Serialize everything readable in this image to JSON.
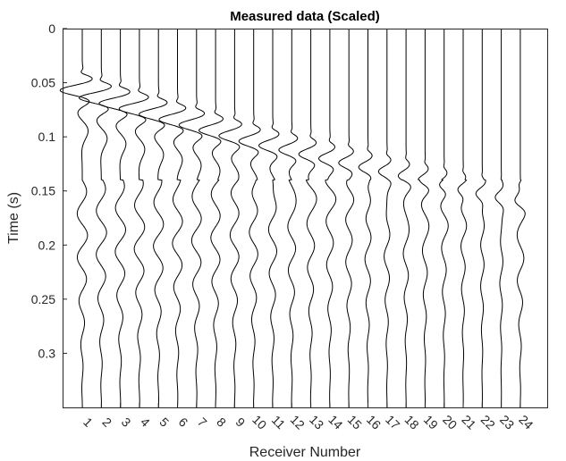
{
  "chart_data": {
    "type": "line",
    "title": "Measured data (Scaled)",
    "xlabel": "Receiver Number",
    "ylabel": "Time (s)",
    "ylim": [
      0,
      0.35
    ],
    "y_reversed": true,
    "y_ticks": [
      "0",
      "0.05",
      "0.1",
      "0.15",
      "0.2",
      "0.25",
      "0.3"
    ],
    "y_tick_values": [
      0,
      0.05,
      0.1,
      0.15,
      0.2,
      0.25,
      0.3
    ],
    "x_ticks": [
      "1",
      "2",
      "3",
      "4",
      "5",
      "6",
      "7",
      "8",
      "9",
      "10",
      "11",
      "12",
      "13",
      "14",
      "15",
      "16",
      "17",
      "18",
      "19",
      "20",
      "21",
      "22",
      "23",
      "24"
    ],
    "x_tick_label_rotation": "rotated",
    "grid": false,
    "legend": "none",
    "trace_color": "#000000",
    "series": [
      {
        "receiver": 1,
        "first_arrival": 0.045,
        "wave_amplitude": 1.2,
        "late_amplitude": 0.28
      },
      {
        "receiver": 2,
        "first_arrival": 0.052,
        "wave_amplitude": 1.2,
        "late_amplitude": 0.28
      },
      {
        "receiver": 3,
        "first_arrival": 0.057,
        "wave_amplitude": 1.15,
        "late_amplitude": 0.28
      },
      {
        "receiver": 4,
        "first_arrival": 0.062,
        "wave_amplitude": 1.1,
        "late_amplitude": 0.28
      },
      {
        "receiver": 5,
        "first_arrival": 0.067,
        "wave_amplitude": 1.05,
        "late_amplitude": 0.27
      },
      {
        "receiver": 6,
        "first_arrival": 0.072,
        "wave_amplitude": 1.0,
        "late_amplitude": 0.27
      },
      {
        "receiver": 7,
        "first_arrival": 0.077,
        "wave_amplitude": 0.95,
        "late_amplitude": 0.26
      },
      {
        "receiver": 8,
        "first_arrival": 0.082,
        "wave_amplitude": 0.9,
        "late_amplitude": 0.25
      },
      {
        "receiver": 9,
        "first_arrival": 0.087,
        "wave_amplitude": 0.85,
        "late_amplitude": 0.24
      },
      {
        "receiver": 10,
        "first_arrival": 0.092,
        "wave_amplitude": 0.8,
        "late_amplitude": 0.23
      },
      {
        "receiver": 11,
        "first_arrival": 0.096,
        "wave_amplitude": 0.75,
        "late_amplitude": 0.22
      },
      {
        "receiver": 12,
        "first_arrival": 0.1,
        "wave_amplitude": 0.7,
        "late_amplitude": 0.21
      },
      {
        "receiver": 13,
        "first_arrival": 0.104,
        "wave_amplitude": 0.65,
        "late_amplitude": 0.2
      },
      {
        "receiver": 14,
        "first_arrival": 0.108,
        "wave_amplitude": 0.6,
        "late_amplitude": 0.19
      },
      {
        "receiver": 15,
        "first_arrival": 0.112,
        "wave_amplitude": 0.55,
        "late_amplitude": 0.18
      },
      {
        "receiver": 16,
        "first_arrival": 0.116,
        "wave_amplitude": 0.5,
        "late_amplitude": 0.17
      },
      {
        "receiver": 17,
        "first_arrival": 0.12,
        "wave_amplitude": 0.46,
        "late_amplitude": 0.16
      },
      {
        "receiver": 18,
        "first_arrival": 0.124,
        "wave_amplitude": 0.42,
        "late_amplitude": 0.15
      },
      {
        "receiver": 19,
        "first_arrival": 0.128,
        "wave_amplitude": 0.38,
        "late_amplitude": 0.14
      },
      {
        "receiver": 20,
        "first_arrival": 0.132,
        "wave_amplitude": 0.34,
        "late_amplitude": 0.13
      },
      {
        "receiver": 21,
        "first_arrival": 0.136,
        "wave_amplitude": 0.3,
        "late_amplitude": 0.12
      },
      {
        "receiver": 22,
        "first_arrival": 0.14,
        "wave_amplitude": 0.27,
        "late_amplitude": 0.11
      },
      {
        "receiver": 23,
        "first_arrival": 0.144,
        "wave_amplitude": 0.24,
        "late_amplitude": 0.1
      },
      {
        "receiver": 24,
        "first_arrival": 0.148,
        "wave_amplitude": 0.22,
        "late_amplitude": 0.2
      }
    ]
  }
}
